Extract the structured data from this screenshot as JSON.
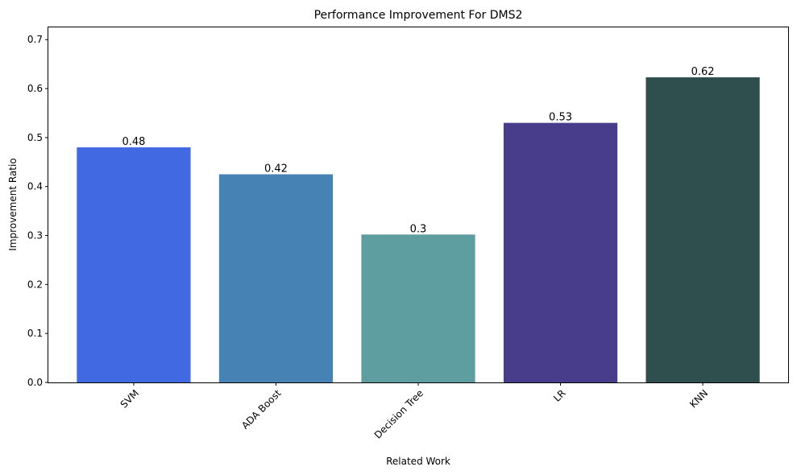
{
  "chart_data": {
    "type": "bar",
    "title": "Performance Improvement For DMS2",
    "xlabel": "Related Work",
    "ylabel": "Improvement Ratio",
    "categories": [
      "SVM",
      "ADA Boost",
      "Decision Tree",
      "LR",
      "KNN"
    ],
    "values": [
      0.48,
      0.425,
      0.302,
      0.53,
      0.623
    ],
    "value_labels": [
      "0.48",
      "0.42",
      "0.3",
      "0.53",
      "0.62"
    ],
    "colors": [
      "#4169e1",
      "#4682b4",
      "#5f9ea0",
      "#483d8b",
      "#2f4f4f"
    ],
    "ylim": [
      0,
      0.725
    ],
    "yticks": [
      0.0,
      0.1,
      0.2,
      0.3,
      0.4,
      0.5,
      0.6,
      0.7
    ],
    "ytick_labels": [
      "0.0",
      "0.1",
      "0.2",
      "0.3",
      "0.4",
      "0.5",
      "0.6",
      "0.7"
    ],
    "grid": false,
    "legend": "none"
  }
}
